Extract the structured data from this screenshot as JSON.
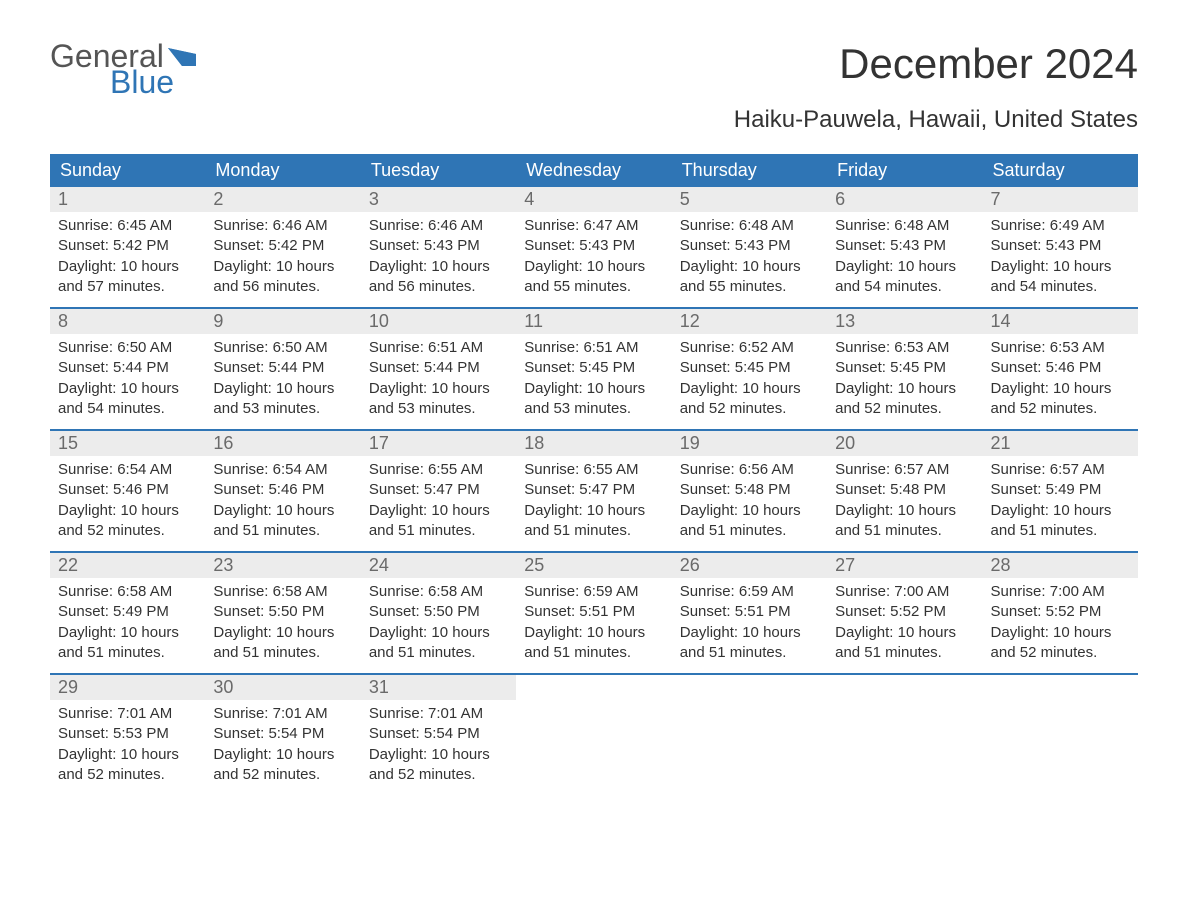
{
  "logo": {
    "text_top": "General",
    "text_bottom": "Blue",
    "flag_color": "#2f75b5"
  },
  "title": "December 2024",
  "subtitle": "Haiku-Pauwela, Hawaii, United States",
  "colors": {
    "header_bg": "#2f75b5",
    "header_text": "#ffffff",
    "daynum_bg": "#ececec",
    "daynum_text": "#6a6a6a",
    "body_text": "#333333",
    "border": "#2f75b5"
  },
  "weekdays": [
    "Sunday",
    "Monday",
    "Tuesday",
    "Wednesday",
    "Thursday",
    "Friday",
    "Saturday"
  ],
  "weeks": [
    [
      {
        "num": "1",
        "sunrise": "Sunrise: 6:45 AM",
        "sunset": "Sunset: 5:42 PM",
        "day1": "Daylight: 10 hours",
        "day2": "and 57 minutes."
      },
      {
        "num": "2",
        "sunrise": "Sunrise: 6:46 AM",
        "sunset": "Sunset: 5:42 PM",
        "day1": "Daylight: 10 hours",
        "day2": "and 56 minutes."
      },
      {
        "num": "3",
        "sunrise": "Sunrise: 6:46 AM",
        "sunset": "Sunset: 5:43 PM",
        "day1": "Daylight: 10 hours",
        "day2": "and 56 minutes."
      },
      {
        "num": "4",
        "sunrise": "Sunrise: 6:47 AM",
        "sunset": "Sunset: 5:43 PM",
        "day1": "Daylight: 10 hours",
        "day2": "and 55 minutes."
      },
      {
        "num": "5",
        "sunrise": "Sunrise: 6:48 AM",
        "sunset": "Sunset: 5:43 PM",
        "day1": "Daylight: 10 hours",
        "day2": "and 55 minutes."
      },
      {
        "num": "6",
        "sunrise": "Sunrise: 6:48 AM",
        "sunset": "Sunset: 5:43 PM",
        "day1": "Daylight: 10 hours",
        "day2": "and 54 minutes."
      },
      {
        "num": "7",
        "sunrise": "Sunrise: 6:49 AM",
        "sunset": "Sunset: 5:43 PM",
        "day1": "Daylight: 10 hours",
        "day2": "and 54 minutes."
      }
    ],
    [
      {
        "num": "8",
        "sunrise": "Sunrise: 6:50 AM",
        "sunset": "Sunset: 5:44 PM",
        "day1": "Daylight: 10 hours",
        "day2": "and 54 minutes."
      },
      {
        "num": "9",
        "sunrise": "Sunrise: 6:50 AM",
        "sunset": "Sunset: 5:44 PM",
        "day1": "Daylight: 10 hours",
        "day2": "and 53 minutes."
      },
      {
        "num": "10",
        "sunrise": "Sunrise: 6:51 AM",
        "sunset": "Sunset: 5:44 PM",
        "day1": "Daylight: 10 hours",
        "day2": "and 53 minutes."
      },
      {
        "num": "11",
        "sunrise": "Sunrise: 6:51 AM",
        "sunset": "Sunset: 5:45 PM",
        "day1": "Daylight: 10 hours",
        "day2": "and 53 minutes."
      },
      {
        "num": "12",
        "sunrise": "Sunrise: 6:52 AM",
        "sunset": "Sunset: 5:45 PM",
        "day1": "Daylight: 10 hours",
        "day2": "and 52 minutes."
      },
      {
        "num": "13",
        "sunrise": "Sunrise: 6:53 AM",
        "sunset": "Sunset: 5:45 PM",
        "day1": "Daylight: 10 hours",
        "day2": "and 52 minutes."
      },
      {
        "num": "14",
        "sunrise": "Sunrise: 6:53 AM",
        "sunset": "Sunset: 5:46 PM",
        "day1": "Daylight: 10 hours",
        "day2": "and 52 minutes."
      }
    ],
    [
      {
        "num": "15",
        "sunrise": "Sunrise: 6:54 AM",
        "sunset": "Sunset: 5:46 PM",
        "day1": "Daylight: 10 hours",
        "day2": "and 52 minutes."
      },
      {
        "num": "16",
        "sunrise": "Sunrise: 6:54 AM",
        "sunset": "Sunset: 5:46 PM",
        "day1": "Daylight: 10 hours",
        "day2": "and 51 minutes."
      },
      {
        "num": "17",
        "sunrise": "Sunrise: 6:55 AM",
        "sunset": "Sunset: 5:47 PM",
        "day1": "Daylight: 10 hours",
        "day2": "and 51 minutes."
      },
      {
        "num": "18",
        "sunrise": "Sunrise: 6:55 AM",
        "sunset": "Sunset: 5:47 PM",
        "day1": "Daylight: 10 hours",
        "day2": "and 51 minutes."
      },
      {
        "num": "19",
        "sunrise": "Sunrise: 6:56 AM",
        "sunset": "Sunset: 5:48 PM",
        "day1": "Daylight: 10 hours",
        "day2": "and 51 minutes."
      },
      {
        "num": "20",
        "sunrise": "Sunrise: 6:57 AM",
        "sunset": "Sunset: 5:48 PM",
        "day1": "Daylight: 10 hours",
        "day2": "and 51 minutes."
      },
      {
        "num": "21",
        "sunrise": "Sunrise: 6:57 AM",
        "sunset": "Sunset: 5:49 PM",
        "day1": "Daylight: 10 hours",
        "day2": "and 51 minutes."
      }
    ],
    [
      {
        "num": "22",
        "sunrise": "Sunrise: 6:58 AM",
        "sunset": "Sunset: 5:49 PM",
        "day1": "Daylight: 10 hours",
        "day2": "and 51 minutes."
      },
      {
        "num": "23",
        "sunrise": "Sunrise: 6:58 AM",
        "sunset": "Sunset: 5:50 PM",
        "day1": "Daylight: 10 hours",
        "day2": "and 51 minutes."
      },
      {
        "num": "24",
        "sunrise": "Sunrise: 6:58 AM",
        "sunset": "Sunset: 5:50 PM",
        "day1": "Daylight: 10 hours",
        "day2": "and 51 minutes."
      },
      {
        "num": "25",
        "sunrise": "Sunrise: 6:59 AM",
        "sunset": "Sunset: 5:51 PM",
        "day1": "Daylight: 10 hours",
        "day2": "and 51 minutes."
      },
      {
        "num": "26",
        "sunrise": "Sunrise: 6:59 AM",
        "sunset": "Sunset: 5:51 PM",
        "day1": "Daylight: 10 hours",
        "day2": "and 51 minutes."
      },
      {
        "num": "27",
        "sunrise": "Sunrise: 7:00 AM",
        "sunset": "Sunset: 5:52 PM",
        "day1": "Daylight: 10 hours",
        "day2": "and 51 minutes."
      },
      {
        "num": "28",
        "sunrise": "Sunrise: 7:00 AM",
        "sunset": "Sunset: 5:52 PM",
        "day1": "Daylight: 10 hours",
        "day2": "and 52 minutes."
      }
    ],
    [
      {
        "num": "29",
        "sunrise": "Sunrise: 7:01 AM",
        "sunset": "Sunset: 5:53 PM",
        "day1": "Daylight: 10 hours",
        "day2": "and 52 minutes."
      },
      {
        "num": "30",
        "sunrise": "Sunrise: 7:01 AM",
        "sunset": "Sunset: 5:54 PM",
        "day1": "Daylight: 10 hours",
        "day2": "and 52 minutes."
      },
      {
        "num": "31",
        "sunrise": "Sunrise: 7:01 AM",
        "sunset": "Sunset: 5:54 PM",
        "day1": "Daylight: 10 hours",
        "day2": "and 52 minutes."
      },
      {
        "empty": true
      },
      {
        "empty": true
      },
      {
        "empty": true
      },
      {
        "empty": true
      }
    ]
  ]
}
